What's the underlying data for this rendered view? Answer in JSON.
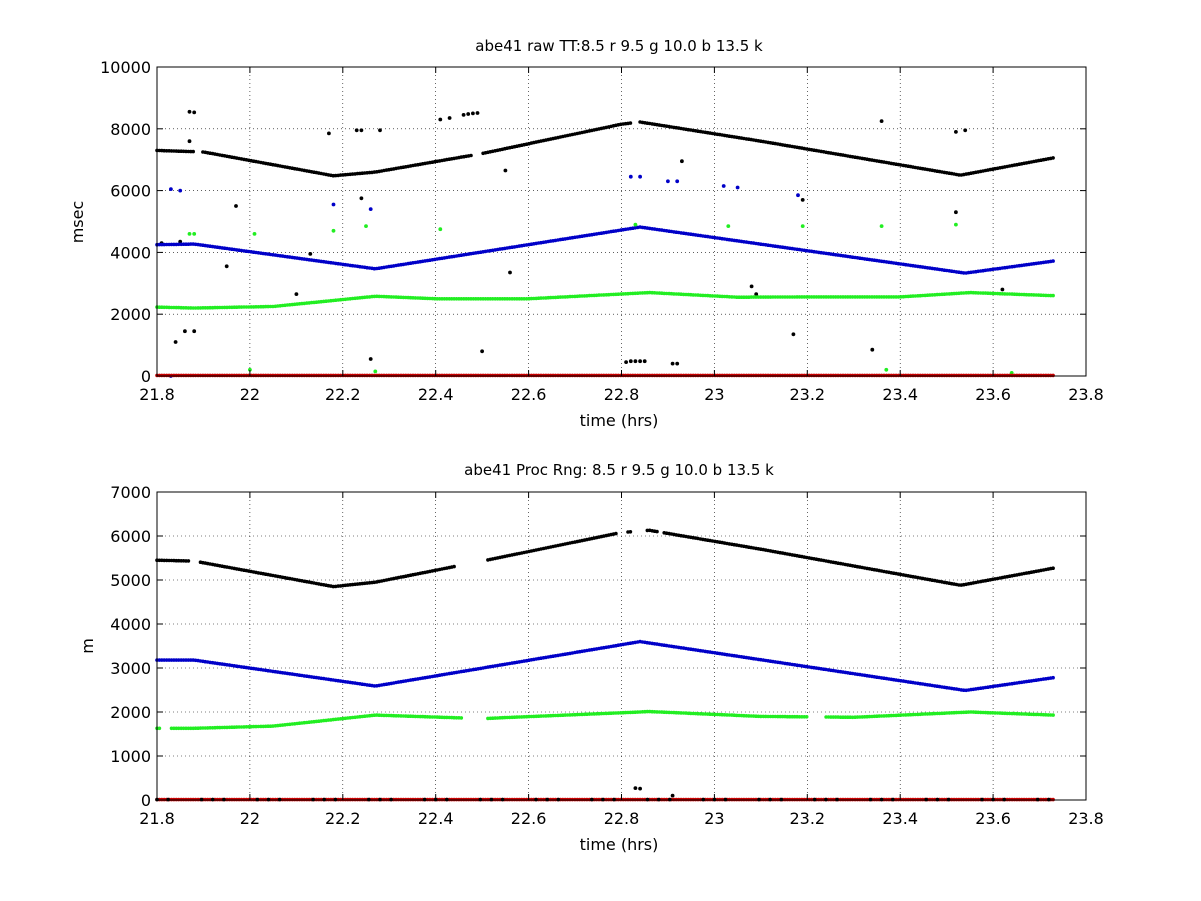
{
  "chart_data": [
    {
      "type": "scatter",
      "title": "abe41 raw TT:8.5 r  9.5 g  10.0 b  13.5  k",
      "xlabel": "time (hrs)",
      "ylabel": "msec",
      "xlim": [
        21.8,
        23.8
      ],
      "ylim": [
        0,
        10000
      ],
      "xticks": [
        21.8,
        22,
        22.2,
        22.4,
        22.6,
        22.8,
        23,
        23.2,
        23.4,
        23.6,
        23.8
      ],
      "xtick_labels": [
        "21.8",
        "22",
        "22.2",
        "22.4",
        "22.6",
        "22.8",
        "23",
        "23.2",
        "23.4",
        "23.6",
        "23.8"
      ],
      "yticks": [
        0,
        2000,
        4000,
        6000,
        8000,
        10000
      ],
      "ytick_labels": [
        "0",
        "2000",
        "4000",
        "6000",
        "8000",
        "10000"
      ],
      "grid": true,
      "series": [
        {
          "color": "#000000",
          "trend": [
            [
              21.8,
              7300
            ],
            [
              21.9,
              7250
            ],
            [
              22.18,
              6480
            ],
            [
              22.27,
              6600
            ],
            [
              22.5,
              7200
            ],
            [
              22.8,
              8150
            ],
            [
              22.84,
              8220
            ],
            [
              23.1,
              7600
            ],
            [
              23.53,
              6500
            ],
            [
              23.73,
              7060
            ]
          ],
          "gaps": [
            [
              21.88,
              21.895
            ],
            [
              22.48,
              22.5
            ],
            [
              22.82,
              22.835
            ]
          ],
          "outliers": [
            [
              21.81,
              4300
            ],
            [
              21.84,
              1100
            ],
            [
              21.85,
              4350
            ],
            [
              21.86,
              1450
            ],
            [
              21.87,
              8550
            ],
            [
              21.88,
              8530
            ],
            [
              21.87,
              7600
            ],
            [
              21.88,
              1450
            ],
            [
              21.95,
              3550
            ],
            [
              21.97,
              5500
            ],
            [
              22.1,
              2650
            ],
            [
              22.13,
              3950
            ],
            [
              22.17,
              7850
            ],
            [
              22.23,
              7950
            ],
            [
              22.24,
              7950
            ],
            [
              22.24,
              5750
            ],
            [
              22.26,
              550
            ],
            [
              22.28,
              7950
            ],
            [
              22.41,
              8300
            ],
            [
              22.43,
              8350
            ],
            [
              22.46,
              8450
            ],
            [
              22.47,
              8480
            ],
            [
              22.48,
              8500
            ],
            [
              22.49,
              8510
            ],
            [
              22.5,
              800
            ],
            [
              22.55,
              6650
            ],
            [
              22.56,
              3350
            ],
            [
              22.81,
              450
            ],
            [
              22.82,
              480
            ],
            [
              22.83,
              480
            ],
            [
              22.84,
              480
            ],
            [
              22.85,
              480
            ],
            [
              22.91,
              400
            ],
            [
              22.92,
              400
            ],
            [
              22.93,
              6950
            ],
            [
              23.08,
              2900
            ],
            [
              23.09,
              2650
            ],
            [
              23.17,
              1350
            ],
            [
              23.19,
              5700
            ],
            [
              23.34,
              850
            ],
            [
              23.36,
              8250
            ],
            [
              23.52,
              7900
            ],
            [
              23.52,
              5300
            ],
            [
              23.54,
              7950
            ],
            [
              23.62,
              2800
            ]
          ]
        },
        {
          "color": "#0000c8",
          "trend": [
            [
              21.8,
              4250
            ],
            [
              21.88,
              4270
            ],
            [
              22.27,
              3470
            ],
            [
              22.84,
              4820
            ],
            [
              23.54,
              3330
            ],
            [
              23.73,
              3720
            ]
          ],
          "outliers": [
            [
              21.83,
              6050
            ],
            [
              21.85,
              6000
            ],
            [
              22.18,
              5550
            ],
            [
              22.26,
              5400
            ],
            [
              22.82,
              6450
            ],
            [
              22.84,
              6450
            ],
            [
              22.9,
              6300
            ],
            [
              22.92,
              6300
            ],
            [
              23.02,
              6150
            ],
            [
              23.05,
              6100
            ],
            [
              23.18,
              5850
            ],
            [
              21.83,
              0
            ]
          ]
        },
        {
          "color": "#22ee22",
          "trend": [
            [
              21.8,
              2230
            ],
            [
              21.88,
              2200
            ],
            [
              22.05,
              2250
            ],
            [
              22.27,
              2580
            ],
            [
              22.4,
              2500
            ],
            [
              22.6,
              2500
            ],
            [
              22.86,
              2700
            ],
            [
              23.05,
              2550
            ],
            [
              23.2,
              2560
            ],
            [
              23.4,
              2560
            ],
            [
              23.55,
              2700
            ],
            [
              23.73,
              2600
            ]
          ],
          "outliers": [
            [
              21.87,
              4600
            ],
            [
              21.88,
              4600
            ],
            [
              22.0,
              200
            ],
            [
              22.01,
              4600
            ],
            [
              22.18,
              4700
            ],
            [
              22.25,
              4850
            ],
            [
              22.27,
              150
            ],
            [
              22.41,
              4750
            ],
            [
              22.83,
              4900
            ],
            [
              23.03,
              4850
            ],
            [
              23.19,
              4850
            ],
            [
              23.36,
              4850
            ],
            [
              23.37,
              200
            ],
            [
              23.52,
              4900
            ],
            [
              23.64,
              100
            ]
          ]
        },
        {
          "color": "#c80000",
          "trend": [
            [
              21.8,
              20
            ],
            [
              23.73,
              20
            ]
          ]
        }
      ]
    },
    {
      "type": "scatter",
      "title": "abe41 Proc Rng: 8.5 r  9.5 g  10.0 b  13.5  k",
      "xlabel": "time (hrs)",
      "ylabel": "m",
      "xlim": [
        21.8,
        23.8
      ],
      "ylim": [
        0,
        7000
      ],
      "xticks": [
        21.8,
        22,
        22.2,
        22.4,
        22.6,
        22.8,
        23,
        23.2,
        23.4,
        23.6,
        23.8
      ],
      "xtick_labels": [
        "21.8",
        "22",
        "22.2",
        "22.4",
        "22.6",
        "22.8",
        "23",
        "23.2",
        "23.4",
        "23.6",
        "23.8"
      ],
      "yticks": [
        0,
        1000,
        2000,
        3000,
        4000,
        5000,
        6000,
        7000
      ],
      "ytick_labels": [
        "0",
        "1000",
        "2000",
        "3000",
        "4000",
        "5000",
        "6000",
        "7000"
      ],
      "grid": true,
      "series": [
        {
          "color": "#000000",
          "trend": [
            [
              21.8,
              5450
            ],
            [
              21.88,
              5430
            ],
            [
              22.18,
              4850
            ],
            [
              22.27,
              4950
            ],
            [
              22.5,
              5430
            ],
            [
              22.8,
              6080
            ],
            [
              22.86,
              6130
            ],
            [
              23.1,
              5700
            ],
            [
              23.53,
              4880
            ],
            [
              23.73,
              5270
            ]
          ],
          "gaps": [
            [
              21.87,
              21.89
            ],
            [
              22.44,
              22.51
            ],
            [
              22.79,
              22.81
            ],
            [
              22.82,
              22.855
            ],
            [
              22.88,
              22.89
            ]
          ],
          "outliers": [
            [
              22.83,
              270
            ],
            [
              22.84,
              260
            ],
            [
              22.91,
              100
            ]
          ]
        },
        {
          "color": "#0000c8",
          "trend": [
            [
              21.8,
              3180
            ],
            [
              21.88,
              3180
            ],
            [
              22.27,
              2590
            ],
            [
              22.84,
              3600
            ],
            [
              23.54,
              2490
            ],
            [
              23.73,
              2780
            ]
          ]
        },
        {
          "color": "#22ee22",
          "trend": [
            [
              21.8,
              1630
            ],
            [
              21.88,
              1630
            ],
            [
              22.05,
              1680
            ],
            [
              22.27,
              1930
            ],
            [
              22.5,
              1850
            ],
            [
              22.86,
              2010
            ],
            [
              23.1,
              1900
            ],
            [
              23.3,
              1880
            ],
            [
              23.55,
              2000
            ],
            [
              23.73,
              1930
            ]
          ],
          "gaps": [
            [
              21.81,
              21.83
            ],
            [
              22.46,
              22.51
            ],
            [
              23.2,
              23.24
            ]
          ]
        },
        {
          "color": "#c80000",
          "trend": [
            [
              21.8,
              10
            ],
            [
              23.73,
              10
            ]
          ]
        },
        {
          "color": "#000000",
          "trend": [
            [
              21.8,
              10
            ],
            [
              23.73,
              10
            ]
          ],
          "sparse": true
        }
      ]
    }
  ]
}
